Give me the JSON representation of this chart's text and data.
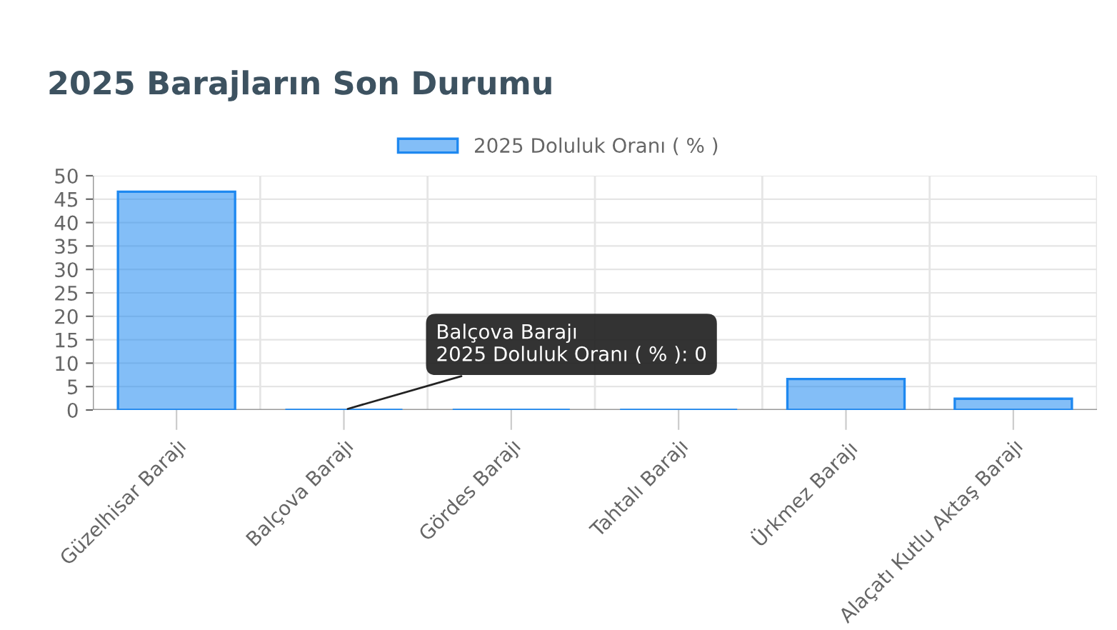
{
  "chart_data": {
    "type": "bar",
    "title": "2025 Barajların Son Durumu",
    "categories": [
      "Güzelhisar Barajı",
      "Balçova Barajı",
      "Gördes Barajı",
      "Tahtalı Barajı",
      "Ürkmez Barajı",
      "Alaçatı Kutlu Aktaş Barajı"
    ],
    "series": [
      {
        "name": "2025 Doluluk Oranı ( % )",
        "color": "#1e88f0",
        "values": [
          46.6,
          0,
          0,
          0,
          6.6,
          2.4
        ]
      }
    ],
    "ylim": [
      0,
      50
    ],
    "yticks": [
      0,
      5,
      10,
      15,
      20,
      25,
      30,
      35,
      40,
      45,
      50
    ],
    "grid": true,
    "legend": "top",
    "annotations": [
      {
        "text": "Balçova Barajı\n2025 Doluluk Oranı ( % ): 0",
        "x": "Balçova Barajı",
        "y": 0
      }
    ]
  }
}
